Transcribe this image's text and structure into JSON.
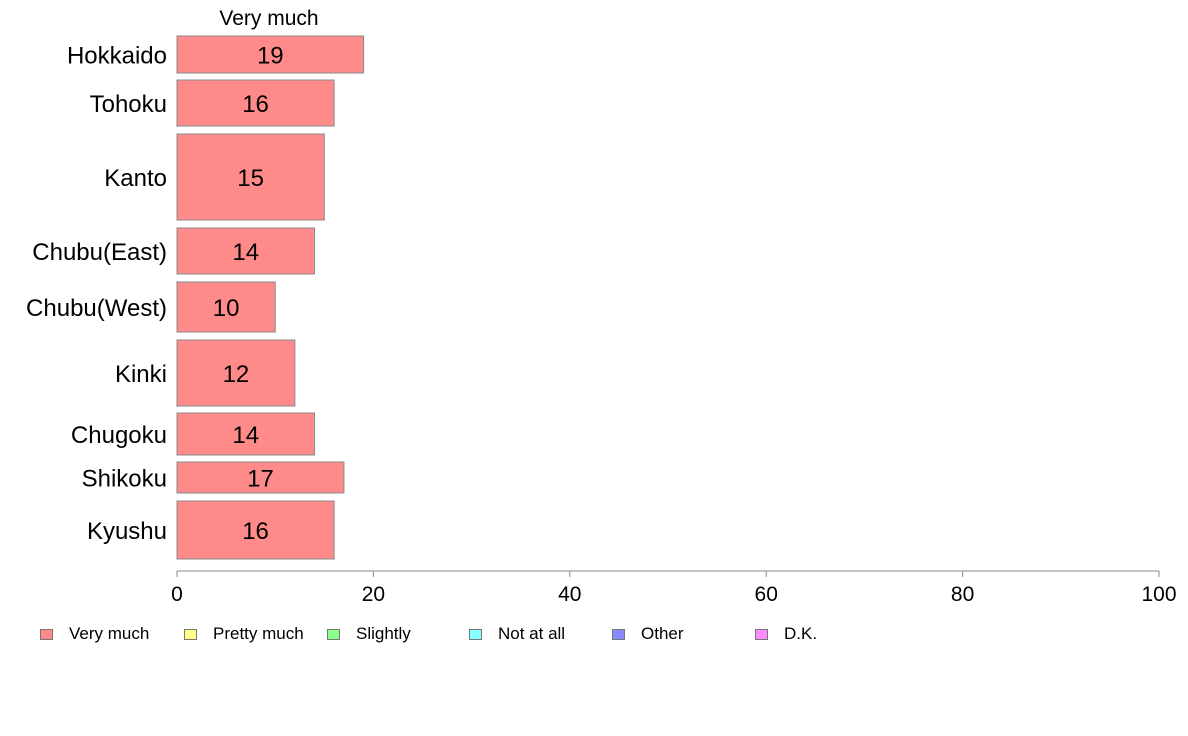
{
  "chart_data": {
    "type": "bar",
    "orientation": "horizontal",
    "stacked": true,
    "categories": [
      "Hokkaido",
      "Tohoku",
      "Kanto",
      "Chubu(East)",
      "Chubu(West)",
      "Kinki",
      "Chugoku",
      "Shikoku",
      "Kyushu"
    ],
    "series": [
      {
        "name": "Very much",
        "values": [
          19,
          16,
          15,
          14,
          10,
          12,
          14,
          17,
          16
        ],
        "color": "#ff8a8a"
      }
    ],
    "column_header": "Very much",
    "xlim": [
      0,
      100
    ],
    "xticks": [
      "0",
      "20",
      "40",
      "60",
      "80",
      "100"
    ],
    "xlabel": "",
    "ylabel": "",
    "grid": false,
    "legend_position": "bottom",
    "legend": [
      {
        "label": "Very much",
        "color": "#ff8a8a"
      },
      {
        "label": "Pretty much",
        "color": "#ffff8a"
      },
      {
        "label": "Slightly",
        "color": "#8aff8a"
      },
      {
        "label": "Not at all",
        "color": "#8affff"
      },
      {
        "label": "Other",
        "color": "#8a8aff"
      },
      {
        "label": "D.K.",
        "color": "#ff8aff"
      }
    ]
  }
}
